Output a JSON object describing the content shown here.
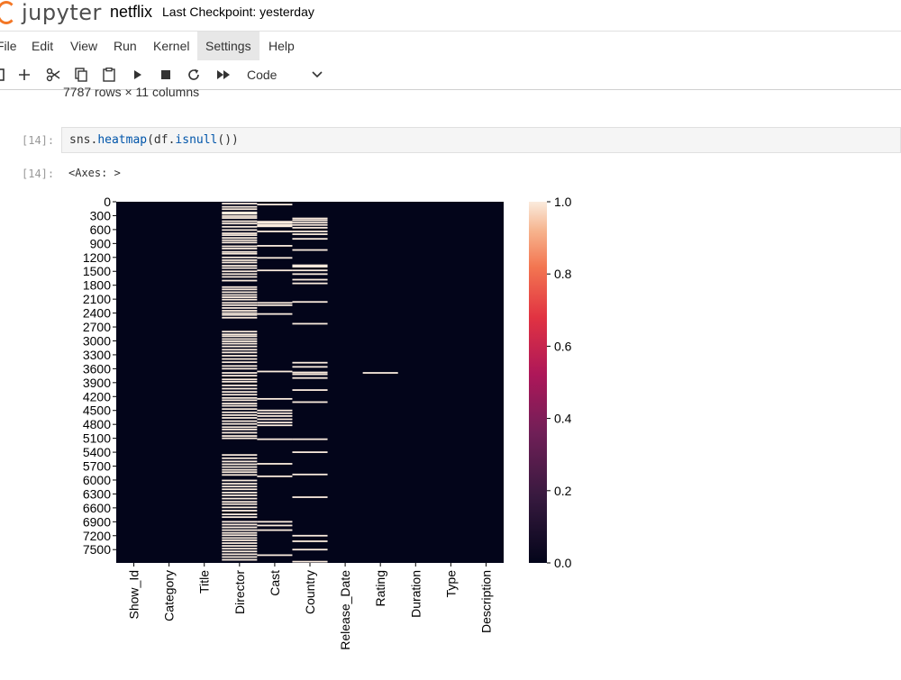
{
  "app": {
    "logo_text": "jupyter",
    "notebook_title": "netflix",
    "checkpoint": "Last Checkpoint: yesterday"
  },
  "menu": {
    "items": [
      "File",
      "Edit",
      "View",
      "Run",
      "Kernel",
      "Settings",
      "Help"
    ],
    "active": "Settings"
  },
  "toolbar": {
    "buttons": [
      "save-icon",
      "add-cell-icon",
      "cut-icon",
      "copy-icon",
      "paste-icon",
      "run-icon",
      "stop-icon",
      "restart-icon",
      "fast-forward-icon"
    ],
    "cell_type": "Code"
  },
  "prev_output": "7787 rows × 11 columns",
  "cell": {
    "in_prompt": "[14]:",
    "out_prompt": "[14]:",
    "code_prefix": "sns.",
    "code_fn1": "heatmap",
    "code_mid": "(df.",
    "code_fn2": "isnull",
    "code_suffix": "())",
    "output_text": "<Axes: >"
  },
  "colors": {
    "heat_low": "#03051a",
    "heat_high": "#faebdd",
    "accent": "#f37726"
  },
  "chart_data": {
    "type": "heatmap",
    "categories": [
      "Show_Id",
      "Category",
      "Title",
      "Director",
      "Cast",
      "Country",
      "Release_Date",
      "Rating",
      "Duration",
      "Type",
      "Description"
    ],
    "yticks": [
      0,
      300,
      600,
      900,
      1200,
      1500,
      1800,
      2100,
      2400,
      2700,
      3000,
      3300,
      3600,
      3900,
      4200,
      4500,
      4800,
      5100,
      5400,
      5700,
      6000,
      6300,
      6600,
      6900,
      7200,
      7500
    ],
    "ylim": [
      0,
      7787
    ],
    "colorbar": {
      "range": [
        0.0,
        1.0
      ],
      "ticks": [
        "0.0",
        "0.2",
        "0.4",
        "0.6",
        "0.8",
        "1.0"
      ]
    },
    "missing_rows": {
      "Director": [
        40,
        110,
        160,
        230,
        260,
        310,
        350,
        420,
        470,
        540,
        610,
        680,
        720,
        780,
        830,
        880,
        960,
        1010,
        1080,
        1120,
        1200,
        1260,
        1310,
        1380,
        1430,
        1500,
        1560,
        1620,
        1700,
        1840,
        1890,
        1950,
        2010,
        2060,
        2110,
        2180,
        2230,
        2290,
        2350,
        2400,
        2440,
        2500,
        2800,
        2860,
        2900,
        2960,
        3010,
        3060,
        3120,
        3190,
        3250,
        3320,
        3390,
        3460,
        3540,
        3600,
        3690,
        3750,
        3830,
        3880,
        3960,
        4030,
        4100,
        4160,
        4230,
        4280,
        4350,
        4400,
        4470,
        4540,
        4600,
        4660,
        4730,
        4790,
        4860,
        4910,
        4980,
        5050,
        5100,
        5460,
        5530,
        5600,
        5660,
        5720,
        5780,
        5830,
        5890,
        6010,
        6080,
        6140,
        6200,
        6270,
        6330,
        6400,
        6470,
        6520,
        6590,
        6660,
        6740,
        6800,
        6900,
        6960,
        7020,
        7080,
        7140,
        7190,
        7250,
        7300,
        7360,
        7420,
        7480,
        7540,
        7600,
        7660,
        7720
      ],
      "Cast": [
        60,
        430,
        460,
        500,
        530,
        640,
        950,
        1210,
        1480,
        2180,
        2230,
        2420,
        3660,
        4250,
        4500,
        4560,
        4620,
        4690,
        4760,
        4820,
        5120,
        5650,
        5920,
        6900,
        6980,
        7080,
        7620
      ],
      "Country": [
        360,
        400,
        450,
        500,
        560,
        640,
        700,
        800,
        1040,
        1370,
        1400,
        1480,
        1560,
        1680,
        1760,
        2160,
        2630,
        3470,
        3560,
        3680,
        3720,
        3800,
        4060,
        4320,
        5120,
        5400,
        5880,
        6370,
        7200,
        7320,
        7500,
        7760
      ],
      "Rating": [
        3690
      ]
    }
  }
}
